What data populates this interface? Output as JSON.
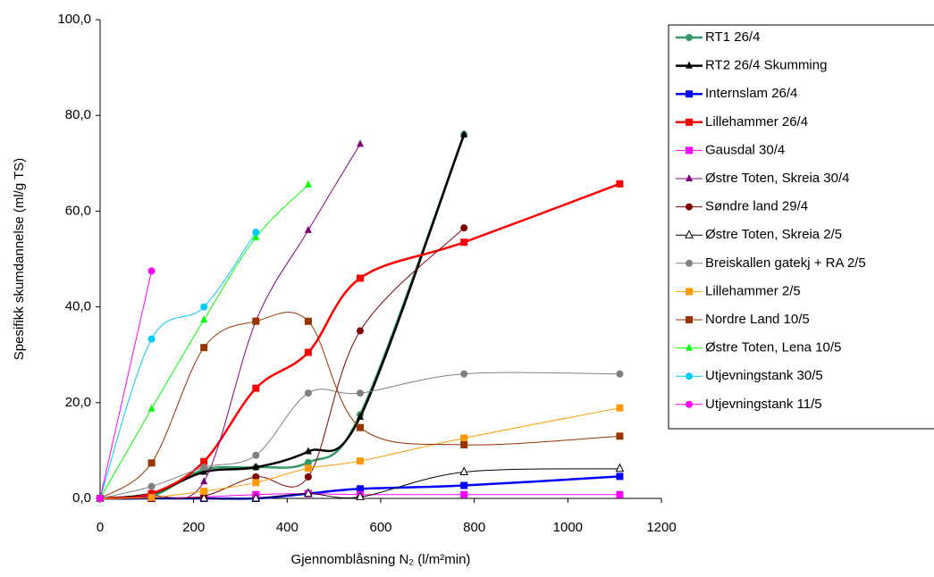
{
  "chart_data": {
    "type": "line",
    "x_label": "Gjennomblåsning N₂ (l/m²min)",
    "y_label": "Spesifikk skumdannelse (ml/g TS)",
    "xlim": [
      0,
      1200
    ],
    "xticks": [
      0,
      200,
      400,
      600,
      800,
      1000,
      1200
    ],
    "ylim": [
      0,
      100
    ],
    "yticks": [
      {
        "value": 0,
        "label": "0,0"
      },
      {
        "value": 20,
        "label": "20,0"
      },
      {
        "value": 40,
        "label": "40,0"
      },
      {
        "value": 60,
        "label": "60,0"
      },
      {
        "value": 80,
        "label": "80,0"
      },
      {
        "value": 100,
        "label": "100,0"
      }
    ],
    "smooth": true,
    "legend": "right",
    "series": [
      {
        "name": "RT1 26/4",
        "color": "#339966",
        "marker": "circle",
        "line_width": 2.5,
        "x": [
          0,
          110,
          222,
          333,
          445,
          556,
          778
        ],
        "values": [
          0,
          0.5,
          6,
          6.5,
          7.5,
          17.5,
          76
        ]
      },
      {
        "name": "RT2 26/4 Skumming",
        "color": "#000000",
        "marker": "triangle",
        "line_width": 2.5,
        "x": [
          0,
          110,
          222,
          333,
          445,
          556,
          778
        ],
        "values": [
          0,
          1,
          5.5,
          6.5,
          9.8,
          17,
          76
        ]
      },
      {
        "name": "Internslam 26/4",
        "color": "#0000ff",
        "marker": "square",
        "line_width": 2.5,
        "x": [
          0,
          110,
          222,
          333,
          445,
          556,
          778,
          1111
        ],
        "values": [
          0,
          0,
          0,
          0,
          1,
          2,
          2.7,
          4.6
        ]
      },
      {
        "name": "Lillehammer 26/4",
        "color": "#ff0000",
        "marker": "square",
        "line_width": 2.5,
        "x": [
          0,
          110,
          222,
          333,
          445,
          556,
          778,
          1111
        ],
        "values": [
          0,
          1,
          7.7,
          23,
          30.5,
          46,
          53.5,
          65.7
        ]
      },
      {
        "name": "Gausdal 30/4",
        "color": "#ff00ff",
        "marker": "square",
        "line_width": 1,
        "x": [
          0,
          110,
          222,
          333,
          445,
          556,
          778,
          1111
        ],
        "values": [
          0,
          0,
          0.3,
          0.8,
          1,
          0.8,
          0.8,
          0.8
        ]
      },
      {
        "name": "Østre Toten, Skreia 30/4",
        "color": "#800080",
        "marker": "triangle",
        "line_width": 1,
        "x": [
          0,
          110,
          222,
          333,
          445,
          556
        ],
        "values": [
          0,
          0.5,
          3.5,
          37,
          56,
          74
        ]
      },
      {
        "name": "Søndre land 29/4",
        "color": "#800000",
        "marker": "circle",
        "line_width": 1,
        "x": [
          0,
          110,
          222,
          333,
          445,
          556,
          778
        ],
        "values": [
          0,
          0,
          0.5,
          4.5,
          4.5,
          35,
          56.5
        ]
      },
      {
        "name": "Østre Toten, Skreia 2/5",
        "color": "#000000",
        "marker": "triangle-open",
        "line_width": 1,
        "x": [
          0,
          110,
          222,
          333,
          445,
          556,
          778,
          1111
        ],
        "values": [
          0,
          0,
          0,
          0,
          1,
          0.3,
          5.5,
          6.2
        ]
      },
      {
        "name": "Breiskallen gatekj + RA 2/5",
        "color": "#808080",
        "marker": "circle",
        "line_width": 1,
        "x": [
          0,
          110,
          222,
          333,
          445,
          556,
          778,
          1111
        ],
        "values": [
          0,
          2.5,
          6.5,
          9,
          22,
          22,
          26,
          26
        ]
      },
      {
        "name": "Lillehammer 2/5",
        "color": "#ff9900",
        "marker": "square",
        "line_width": 1,
        "x": [
          0,
          110,
          222,
          333,
          445,
          556,
          778,
          1111
        ],
        "values": [
          0,
          0.2,
          1.5,
          3.3,
          6.3,
          7.8,
          12.6,
          18.9
        ]
      },
      {
        "name": "Nordre Land 10/5",
        "color": "#993300",
        "marker": "square",
        "line_width": 1,
        "x": [
          0,
          110,
          222,
          333,
          445,
          556,
          778,
          1111
        ],
        "values": [
          0,
          7.4,
          31.5,
          37,
          37,
          14.8,
          11.2,
          13
        ]
      },
      {
        "name": "Østre Toten, Lena 10/5",
        "color": "#00ff00",
        "marker": "triangle",
        "line_width": 1,
        "x": [
          0,
          110,
          222,
          333,
          445
        ],
        "values": [
          0,
          18.7,
          37.3,
          54.5,
          65.5
        ]
      },
      {
        "name": "Utjevningstank 30/5",
        "color": "#00ccff",
        "marker": "circle",
        "line_width": 1,
        "x": [
          0,
          110,
          222,
          333
        ],
        "values": [
          0,
          33.3,
          40,
          55.6
        ]
      },
      {
        "name": "Utjevningstank 11/5",
        "color": "#ff00ff",
        "marker": "circle",
        "line_width": 1,
        "x": [
          0,
          110
        ],
        "values": [
          0,
          47.5
        ]
      }
    ]
  }
}
